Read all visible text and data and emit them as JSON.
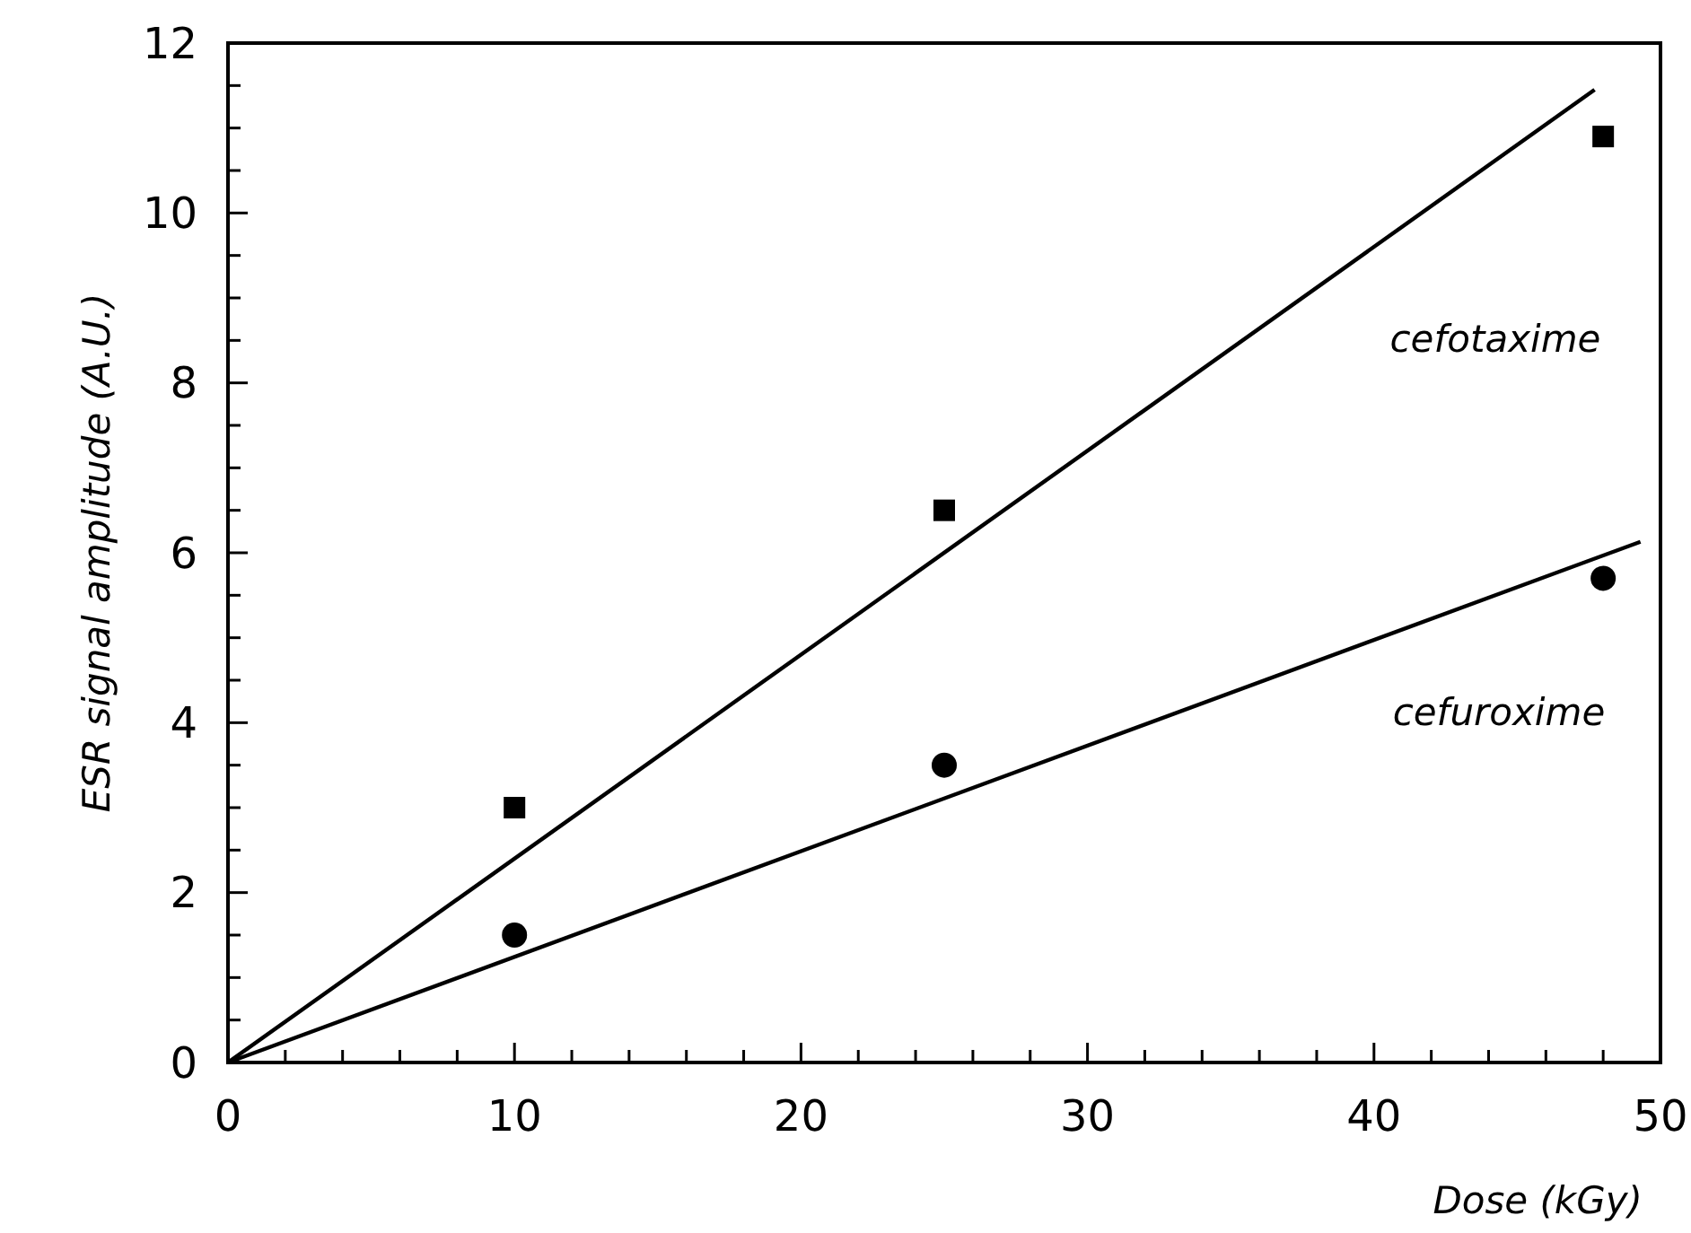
{
  "chart_data": {
    "type": "scatter",
    "xlabel": "Dose (kGy)",
    "ylabel": "ESR signal amplitude (A.U.)",
    "xlim": [
      0,
      50
    ],
    "ylim": [
      0,
      12
    ],
    "xticks": [
      0,
      {
        "value": 2,
        "label": null
      },
      {
        "value": 4,
        "label": null
      },
      {
        "value": 6,
        "label": null
      },
      {
        "value": 8,
        "label": null
      },
      10,
      {
        "value": 12,
        "label": null
      },
      {
        "value": 14,
        "label": null
      },
      {
        "value": 16,
        "label": null
      },
      {
        "value": 18,
        "label": null
      },
      20,
      {
        "value": 22,
        "label": null
      },
      {
        "value": 24,
        "label": null
      },
      {
        "value": 26,
        "label": null
      },
      {
        "value": 28,
        "label": null
      },
      30,
      {
        "value": 32,
        "label": null
      },
      {
        "value": 34,
        "label": null
      },
      {
        "value": 36,
        "label": null
      },
      {
        "value": 38,
        "label": null
      },
      40,
      {
        "value": 42,
        "label": null
      },
      {
        "value": 44,
        "label": null
      },
      {
        "value": 46,
        "label": null
      },
      {
        "value": 48,
        "label": null
      },
      50
    ],
    "yticks": [
      0,
      {
        "value": 0.5,
        "label": null
      },
      {
        "value": 1,
        "label": null
      },
      {
        "value": 1.5,
        "label": null
      },
      2,
      {
        "value": 2.5,
        "label": null
      },
      {
        "value": 3,
        "label": null
      },
      {
        "value": 3.5,
        "label": null
      },
      4,
      {
        "value": 4.5,
        "label": null
      },
      {
        "value": 5,
        "label": null
      },
      {
        "value": 5.5,
        "label": null
      },
      6,
      {
        "value": 6.5,
        "label": null
      },
      {
        "value": 7,
        "label": null
      },
      {
        "value": 7.5,
        "label": null
      },
      8,
      {
        "value": 8.5,
        "label": null
      },
      {
        "value": 9,
        "label": null
      },
      {
        "value": 9.5,
        "label": null
      },
      10,
      {
        "value": 10.5,
        "label": null
      },
      {
        "value": 11,
        "label": null
      },
      {
        "value": 11.5,
        "label": null
      },
      12
    ],
    "grid": false,
    "series": [
      {
        "marker": "square",
        "color": "#000000",
        "x": [
          10,
          25,
          48
        ],
        "values": [
          3.0,
          6.5,
          10.9
        ]
      },
      {
        "marker": "circle",
        "color": "#000000",
        "x": [
          10,
          25,
          48
        ],
        "values": [
          1.5,
          3.5,
          5.7
        ]
      },
      {
        "type": "line",
        "marker": "none",
        "color": "#000000",
        "line_style": "solid",
        "x": [
          0,
          47.7
        ],
        "values": [
          0,
          11.45
        ]
      },
      {
        "type": "line",
        "marker": "none",
        "color": "#000000",
        "line_style": "solid",
        "x": [
          0,
          49.3
        ],
        "values": [
          0,
          6.13
        ]
      }
    ],
    "annotations": [
      "cefotaxime",
      "cefuroxime"
    ]
  }
}
